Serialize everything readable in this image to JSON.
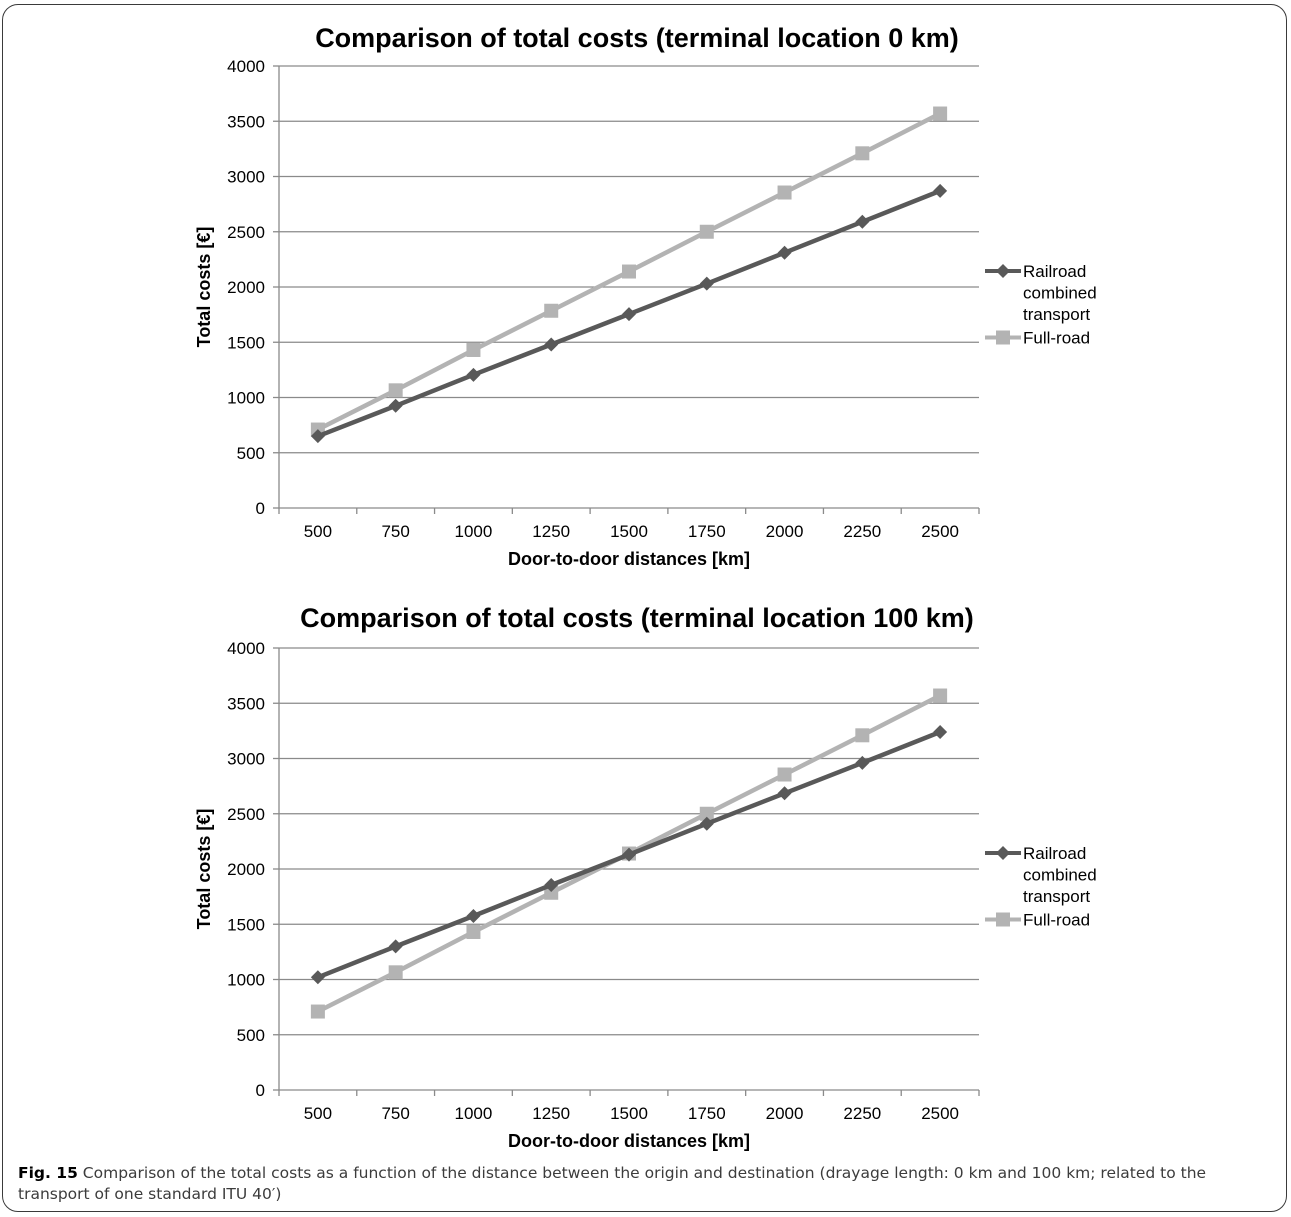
{
  "chart_data": [
    {
      "type": "line",
      "title": "Comparison of total costs (terminal location 0 km)",
      "xlabel": "Door-to-door distances [km]",
      "ylabel": "Total costs [€]",
      "categories": [
        "500",
        "750",
        "1000",
        "1250",
        "1500",
        "1750",
        "2000",
        "2250",
        "2500"
      ],
      "ylim": [
        0,
        4000
      ],
      "yticks": [
        "0",
        "500",
        "1000",
        "1500",
        "2000",
        "2500",
        "3000",
        "3500",
        "4000"
      ],
      "grid": true,
      "legend_position": "right",
      "series": [
        {
          "name": "Railroad combined transport",
          "legend_lines": [
            "Railroad",
            "combined",
            "transport"
          ],
          "color": "#595959",
          "marker": "diamond",
          "values": [
            650,
            925,
            1205,
            1480,
            1755,
            2030,
            2310,
            2590,
            2870
          ]
        },
        {
          "name": "Full-road",
          "legend_lines": [
            "Full-road"
          ],
          "color": "#b3b3b3",
          "marker": "square",
          "values": [
            710,
            1065,
            1430,
            1785,
            2140,
            2500,
            2855,
            3210,
            3570
          ]
        }
      ]
    },
    {
      "type": "line",
      "title": "Comparison of total costs (terminal location 100 km)",
      "xlabel": "Door-to-door distances [km]",
      "ylabel": "Total costs [€]",
      "categories": [
        "500",
        "750",
        "1000",
        "1250",
        "1500",
        "1750",
        "2000",
        "2250",
        "2500"
      ],
      "ylim": [
        0,
        4000
      ],
      "yticks": [
        "0",
        "500",
        "1000",
        "1500",
        "2000",
        "2500",
        "3000",
        "3500",
        "4000"
      ],
      "grid": true,
      "legend_position": "right",
      "series": [
        {
          "name": "Railroad combined transport",
          "legend_lines": [
            "Railroad",
            "combined",
            "transport"
          ],
          "color": "#595959",
          "marker": "diamond",
          "values": [
            1020,
            1300,
            1575,
            1855,
            2130,
            2410,
            2685,
            2960,
            3240
          ]
        },
        {
          "name": "Full-road",
          "legend_lines": [
            "Full-road"
          ],
          "color": "#b3b3b3",
          "marker": "square",
          "values": [
            710,
            1065,
            1430,
            1785,
            2140,
            2500,
            2855,
            3210,
            3570
          ]
        }
      ]
    }
  ],
  "caption": {
    "label": "Fig. 15",
    "text": " Comparison of the total costs as a function of the distance between the origin and destination (drayage length: 0 km and 100 km; related to the transport of one standard ITU 40′)"
  }
}
